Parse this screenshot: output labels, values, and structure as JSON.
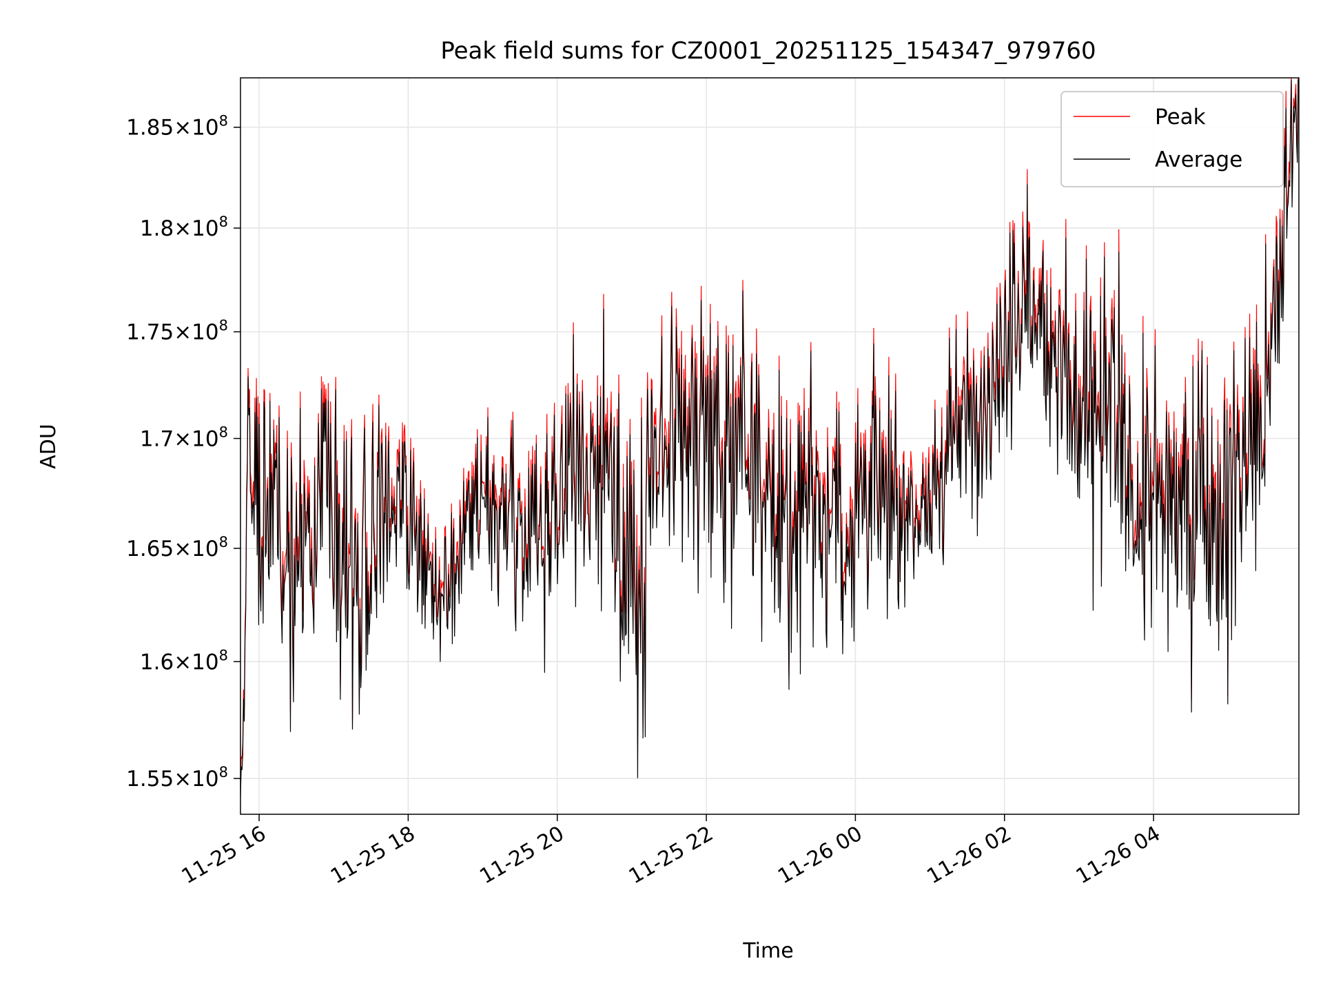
{
  "chart_data": {
    "type": "line",
    "title": "Peak field sums for CZ0001_20251125_154347_979760",
    "xlabel": "Time",
    "ylabel": "ADU",
    "y_scale": "log",
    "xlim_hours": [
      15.75,
      29.95
    ],
    "ylim": [
      153500000,
      187500000
    ],
    "grid": true,
    "legend_position": "top-right",
    "x_ticks": [
      {
        "hour": 16,
        "label": "11-25 16"
      },
      {
        "hour": 18,
        "label": "11-25 18"
      },
      {
        "hour": 20,
        "label": "11-25 20"
      },
      {
        "hour": 22,
        "label": "11-25 22"
      },
      {
        "hour": 24,
        "label": "11-26 00"
      },
      {
        "hour": 26,
        "label": "11-26 02"
      },
      {
        "hour": 28,
        "label": "11-26 04"
      }
    ],
    "y_ticks": [
      {
        "value": 155000000,
        "mantissa": "1.55",
        "exponent": "8"
      },
      {
        "value": 160000000,
        "mantissa": "1.6",
        "exponent": "8"
      },
      {
        "value": 165000000,
        "mantissa": "1.65",
        "exponent": "8"
      },
      {
        "value": 170000000,
        "mantissa": "1.7",
        "exponent": "8"
      },
      {
        "value": 175000000,
        "mantissa": "1.75",
        "exponent": "8"
      },
      {
        "value": 180000000,
        "mantissa": "1.8",
        "exponent": "8"
      },
      {
        "value": 185000000,
        "mantissa": "1.85",
        "exponent": "8"
      }
    ],
    "series": [
      {
        "name": "Peak",
        "color": "#ff0000"
      },
      {
        "name": "Average",
        "color": "#000000"
      }
    ],
    "x_hours": [
      15.75,
      15.8,
      15.85,
      15.9,
      15.95,
      16.0,
      16.2,
      16.4,
      16.6,
      16.8,
      17.0,
      17.2,
      17.4,
      17.6,
      17.8,
      18.0,
      18.2,
      18.4,
      18.6,
      18.8,
      19.0,
      19.2,
      19.4,
      19.6,
      19.8,
      20.0,
      20.2,
      20.4,
      20.6,
      20.8,
      21.0,
      21.1,
      21.2,
      21.4,
      21.6,
      21.8,
      22.0,
      22.2,
      22.4,
      22.6,
      22.8,
      23.0,
      23.2,
      23.4,
      23.6,
      23.8,
      24.0,
      24.2,
      24.4,
      24.6,
      24.8,
      25.0,
      25.2,
      25.4,
      25.6,
      25.8,
      26.0,
      26.2,
      26.4,
      26.6,
      26.8,
      27.0,
      27.2,
      27.4,
      27.6,
      27.8,
      28.0,
      28.2,
      28.4,
      28.6,
      28.8,
      29.0,
      29.2,
      29.4,
      29.6,
      29.8,
      29.95
    ],
    "baseline_millions": [
      154.0,
      158.0,
      170.5,
      169.0,
      167.5,
      166.0,
      165.0,
      164.0,
      165.5,
      168.5,
      166.0,
      164.5,
      164.0,
      167.0,
      168.5,
      166.5,
      164.0,
      162.0,
      163.5,
      166.5,
      166.5,
      165.5,
      166.0,
      165.5,
      166.0,
      168.0,
      169.5,
      168.5,
      169.0,
      167.0,
      165.5,
      161.0,
      168.0,
      168.5,
      169.5,
      169.5,
      170.0,
      169.0,
      168.5,
      168.0,
      166.5,
      167.5,
      166.5,
      168.5,
      167.0,
      166.0,
      167.0,
      168.0,
      167.5,
      168.0,
      166.5,
      166.5,
      169.0,
      170.5,
      171.5,
      172.5,
      175.0,
      176.5,
      176.0,
      175.5,
      173.0,
      170.5,
      170.5,
      171.0,
      169.0,
      167.5,
      167.0,
      168.0,
      167.5,
      167.0,
      165.5,
      167.5,
      168.5,
      171.0,
      172.5,
      182.0,
      186.0
    ],
    "amplitude_millions": [
      0.5,
      1.0,
      2.0,
      2.4,
      2.4,
      2.6,
      3.0,
      3.2,
      3.0,
      2.6,
      2.8,
      3.2,
      3.2,
      2.6,
      2.4,
      2.2,
      1.8,
      1.6,
      1.4,
      1.6,
      1.8,
      1.8,
      2.0,
      2.0,
      2.2,
      2.6,
      3.0,
      3.2,
      3.4,
      3.6,
      4.4,
      4.6,
      3.6,
      3.4,
      3.4,
      3.4,
      3.6,
      3.4,
      3.4,
      3.4,
      3.4,
      3.2,
      3.4,
      3.2,
      3.0,
      2.8,
      2.8,
      2.8,
      2.4,
      2.4,
      2.2,
      2.2,
      2.4,
      2.4,
      2.4,
      2.4,
      2.6,
      2.6,
      2.6,
      2.6,
      2.8,
      3.0,
      3.0,
      3.0,
      3.0,
      3.0,
      3.2,
      3.0,
      3.0,
      3.0,
      3.2,
      3.2,
      3.2,
      3.0,
      3.2,
      2.6,
      1.5
    ],
    "n_samples": 1400,
    "peak_offset_millions": 0.35
  }
}
